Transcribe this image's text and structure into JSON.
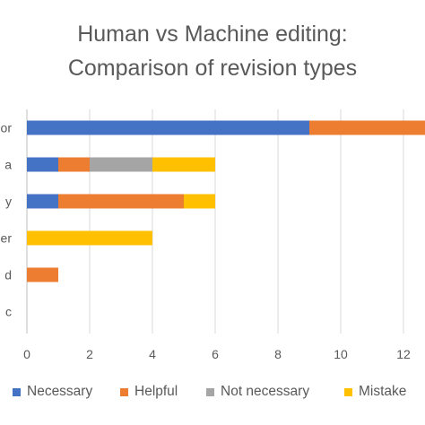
{
  "chart_data": {
    "type": "bar",
    "orientation": "horizontal",
    "stacked": true,
    "title_lines": [
      "Human vs Machine editing:",
      "Comparison of revision types"
    ],
    "categories": [
      "or",
      "a",
      "y",
      "er",
      "d",
      "c"
    ],
    "series": [
      {
        "name": "Necessary",
        "color": "#4472C4",
        "values": [
          9,
          1,
          1,
          0,
          0,
          0
        ]
      },
      {
        "name": "Helpful",
        "color": "#ED7D31",
        "values": [
          4,
          1,
          4,
          0,
          1,
          0
        ]
      },
      {
        "name": "Not necessary",
        "color": "#A5A5A5",
        "values": [
          0,
          2,
          0,
          0,
          0,
          0
        ]
      },
      {
        "name": "Mistake",
        "color": "#FFC000",
        "values": [
          0,
          2,
          1,
          4,
          0,
          0
        ]
      }
    ],
    "xticks": [
      0,
      2,
      4,
      6,
      8,
      10,
      12
    ],
    "xlim": [
      0,
      13
    ],
    "grid": true,
    "legend_position": "bottom"
  }
}
